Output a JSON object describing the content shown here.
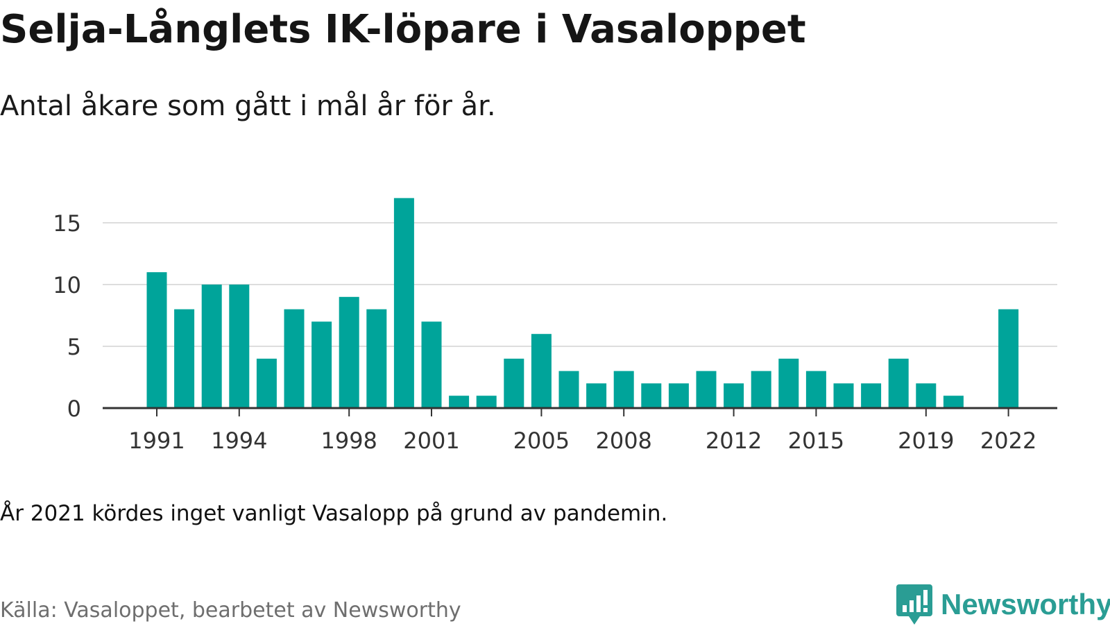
{
  "title": "Selja-Långlets IK-löpare i Vasaloppet",
  "subtitle": "Antal åkare som gått i mål år för år.",
  "note": "År 2021 kördes inget vanligt Vasalopp på grund av pandemin.",
  "source": "Källa: Vasaloppet, bearbetet av Newsworthy",
  "brand": {
    "name": "Newsworthy",
    "icon": "newsworthy-logo-icon",
    "color": "#2a9d94"
  },
  "colors": {
    "bar": "#00a49a",
    "grid": "#dddddd",
    "axis": "#333333"
  },
  "chart_data": {
    "type": "bar",
    "categories": [
      1991,
      1992,
      1993,
      1994,
      1995,
      1996,
      1997,
      1998,
      1999,
      2000,
      2001,
      2002,
      2003,
      2004,
      2005,
      2006,
      2007,
      2008,
      2009,
      2010,
      2011,
      2012,
      2013,
      2014,
      2015,
      2016,
      2017,
      2018,
      2019,
      2020,
      2021,
      2022
    ],
    "values": [
      11,
      8,
      10,
      10,
      4,
      8,
      7,
      9,
      8,
      17,
      7,
      1,
      1,
      4,
      6,
      3,
      2,
      3,
      2,
      2,
      3,
      2,
      3,
      4,
      3,
      2,
      2,
      4,
      2,
      1,
      null,
      8
    ],
    "x_tick_labels": [
      "1991",
      "1994",
      "1998",
      "2001",
      "2005",
      "2008",
      "2012",
      "2015",
      "2019",
      "2022"
    ],
    "y_ticks": [
      0,
      5,
      10,
      15
    ],
    "ylim": [
      0,
      17
    ],
    "xlabel": "",
    "ylabel": "",
    "grid": true,
    "legend": "none"
  }
}
